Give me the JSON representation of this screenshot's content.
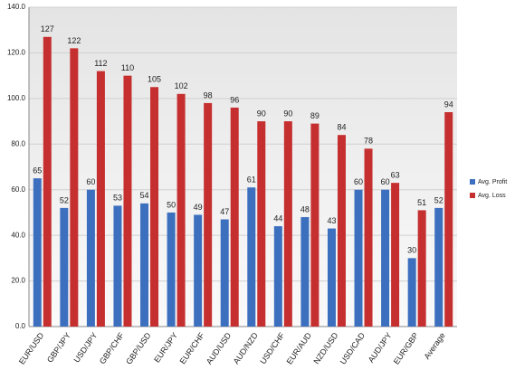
{
  "chart_data": {
    "type": "bar",
    "categories": [
      "EUR/USD",
      "GBP/JPY",
      "USD/JPY",
      "GBP/CHF",
      "GBP/USD",
      "EUR/JPY",
      "EUR/CHF",
      "AUD/USD",
      "AUD/NZD",
      "USD/CHF",
      "EUR/AUD",
      "NZD/USD",
      "USD/CAD",
      "AUD/JPY",
      "EUR/GBP",
      "Average"
    ],
    "series": [
      {
        "name": "Avg. Profit",
        "color": "#3d6fbf",
        "values": [
          65,
          52,
          60,
          53,
          54,
          50,
          49,
          47,
          61,
          44,
          48,
          43,
          60,
          60,
          30,
          52
        ]
      },
      {
        "name": "Avg. Loss",
        "color": "#c62f2f",
        "values": [
          127,
          122,
          112,
          110,
          105,
          102,
          98,
          96,
          90,
          90,
          89,
          84,
          78,
          63,
          51,
          94
        ]
      }
    ],
    "ylim": [
      0,
      140
    ],
    "yticks": [
      {
        "value": 0,
        "label": "0.0"
      },
      {
        "value": 20,
        "label": "20.0"
      },
      {
        "value": 40,
        "label": "40.0"
      },
      {
        "value": 60,
        "label": "60.0"
      },
      {
        "value": 80,
        "label": "80.0"
      },
      {
        "value": 100,
        "label": "100.0"
      },
      {
        "value": 120,
        "label": "120.0"
      },
      {
        "value": 140,
        "label": "140.0"
      }
    ],
    "grid": true,
    "legend": "right"
  }
}
